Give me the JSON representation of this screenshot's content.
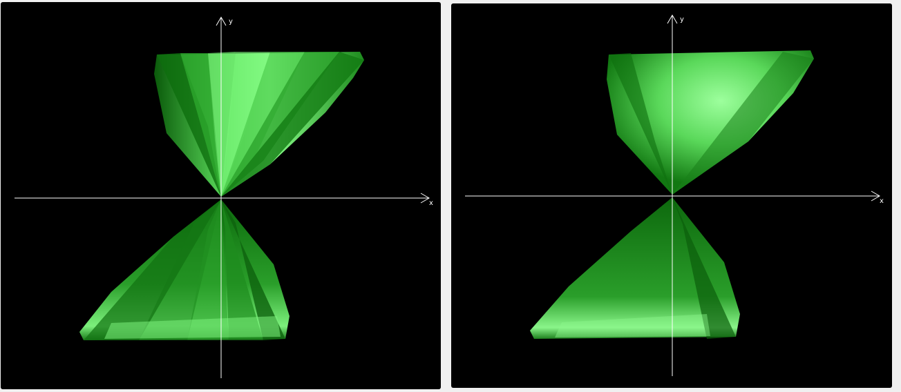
{
  "panels": [
    {
      "id": "left",
      "shading": "faceted",
      "axes": {
        "x_label": "x",
        "y_label": "y"
      }
    },
    {
      "id": "right",
      "shading": "smooth",
      "axes": {
        "x_label": "x",
        "y_label": "y"
      }
    }
  ],
  "colors": {
    "background": "#000000",
    "surface_dark": "#0a5a0a",
    "surface_mid": "#2faa2f",
    "surface_light": "#8dff8d",
    "axis": "#ffffff"
  }
}
